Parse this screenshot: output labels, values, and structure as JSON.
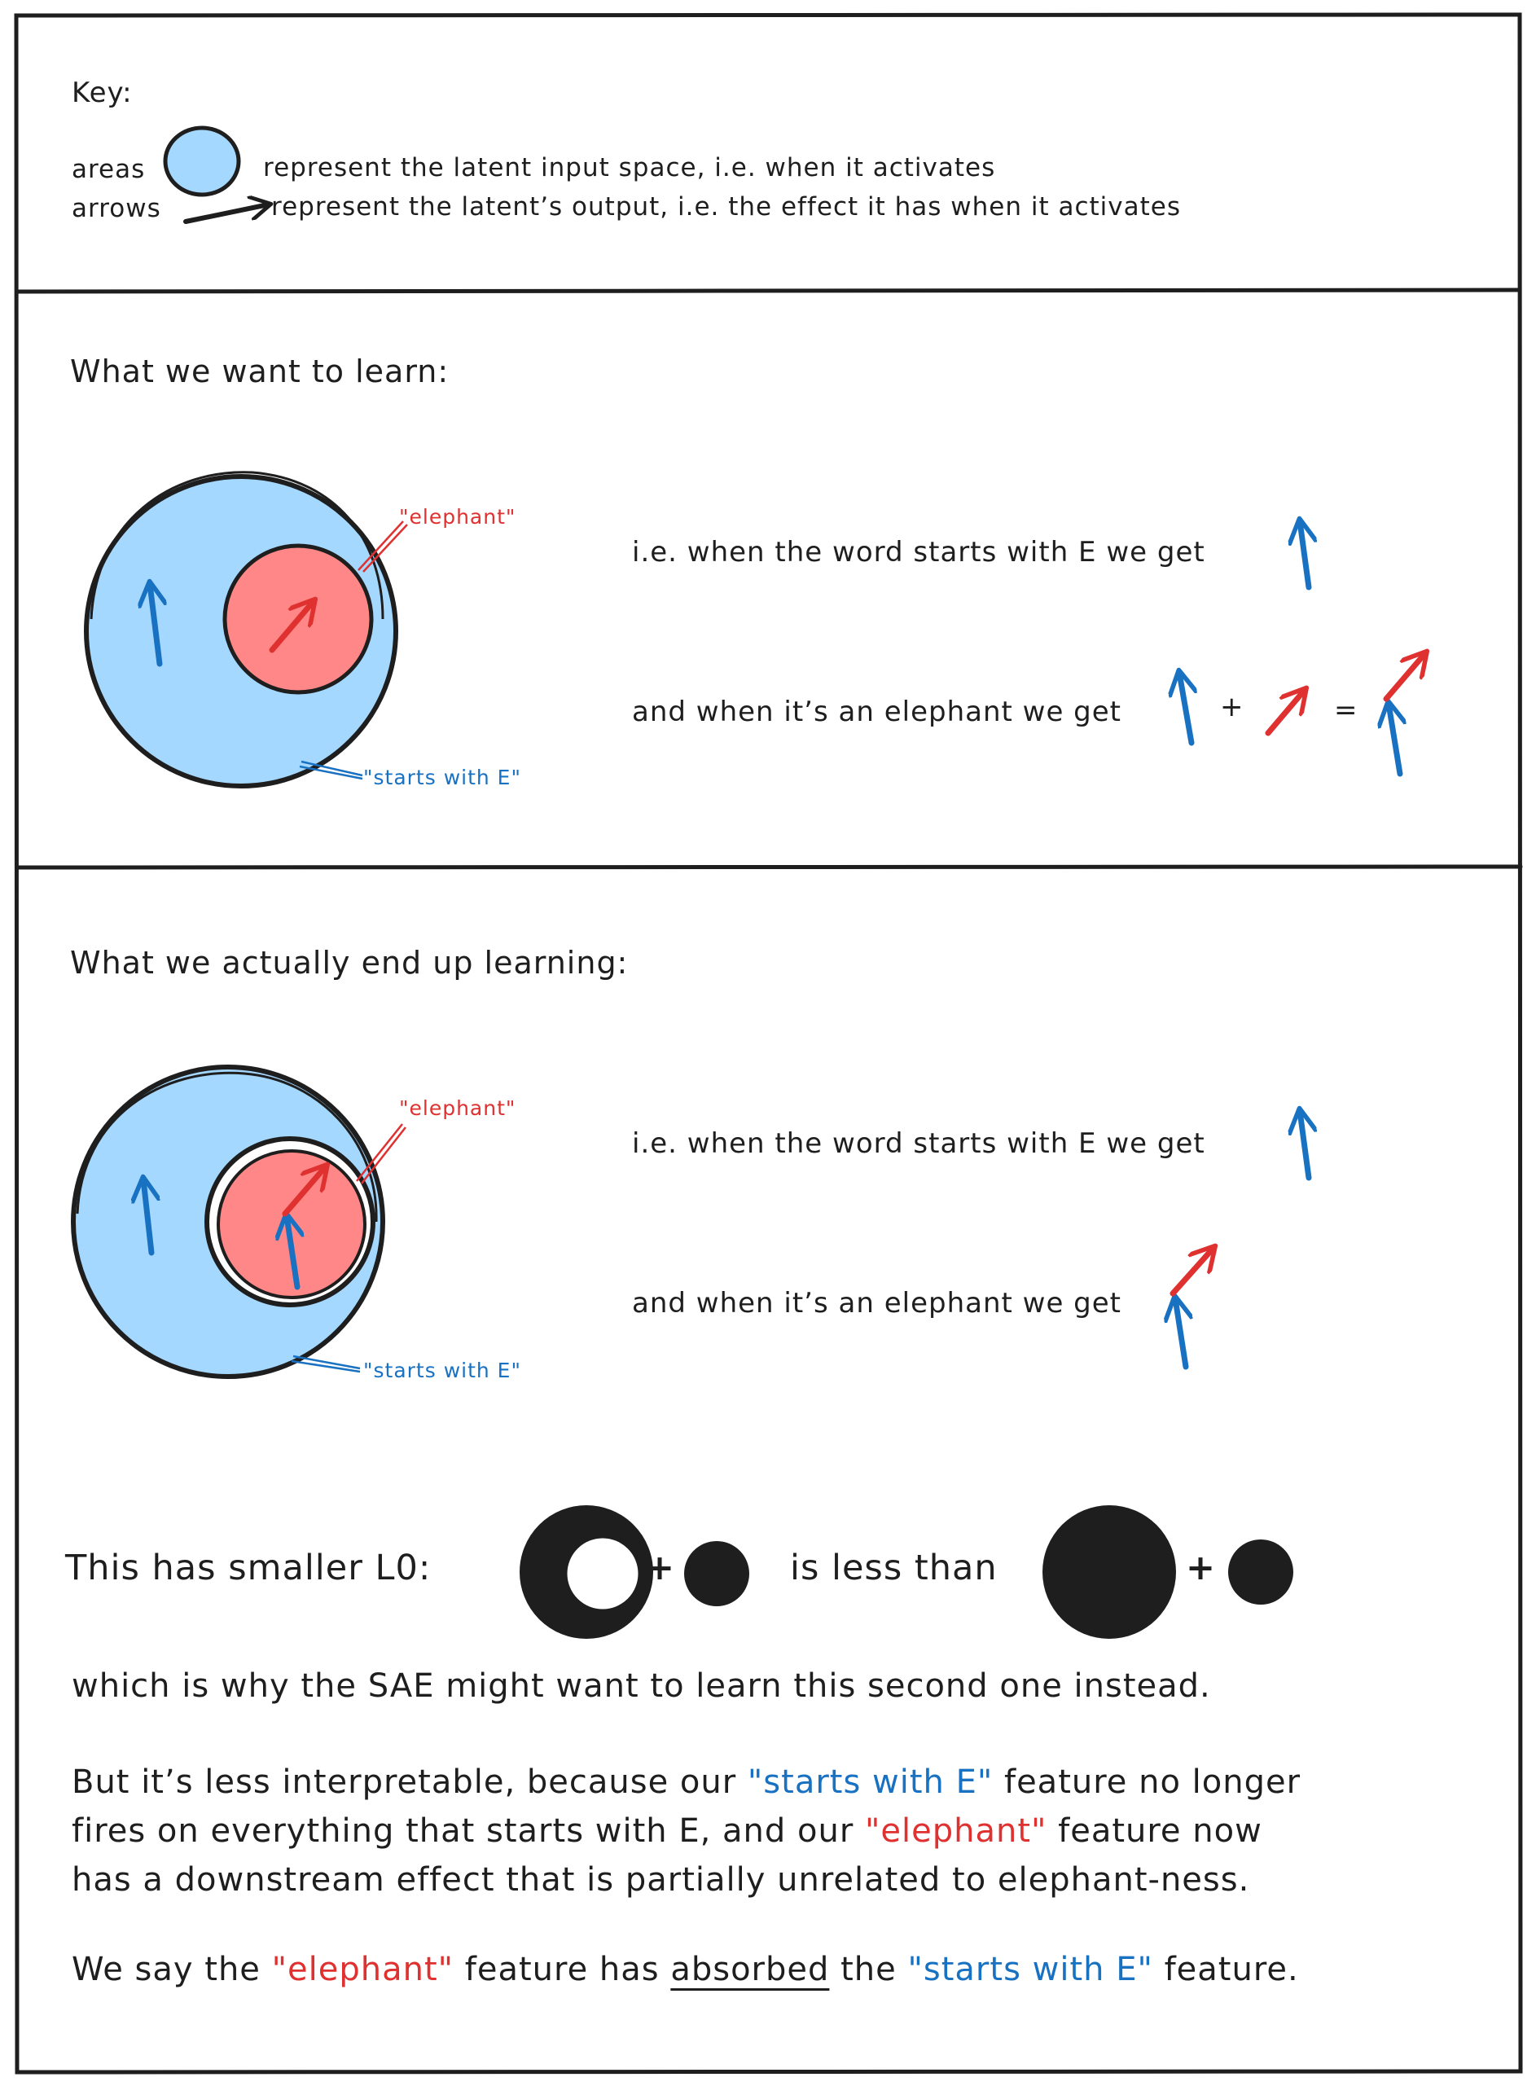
{
  "colors": {
    "ink": "#1e1e1e",
    "blue_fill": "#a5d8ff",
    "red_fill": "#ff8787",
    "blue_ink": "#1971c2",
    "red_ink": "#e03131"
  },
  "key": {
    "title": "Key:",
    "areas_label": "areas",
    "areas_text": "represent the latent input space, i.e. when it activates",
    "arrows_label": "arrows",
    "arrows_text": "represent the latent’s output, i.e. the effect it has when it activates"
  },
  "want": {
    "heading": "What we want to learn:",
    "elephant_label": "\"elephant\"",
    "starts_label": "\"starts with E\"",
    "line1": "i.e. when the word starts with E we get",
    "line2": "and when it’s an elephant we get",
    "plus": "+",
    "equals": "="
  },
  "actual": {
    "heading": "What we actually end up learning:",
    "elephant_label": "\"elephant\"",
    "starts_label": "\"starts with E\"",
    "line1": "i.e. when the word starts with E we get",
    "line2": "and when it’s an elephant we get"
  },
  "l0": {
    "intro": "This has smaller L0:",
    "plus1": "+",
    "compare": "is less than",
    "plus2": "+"
  },
  "conclusion": {
    "line1": "which is why the SAE might want to learn this second one instead.",
    "p2_a": "But it’s less interpretable, because our",
    "p2_starts": "\"starts with E\"",
    "p2_b": "feature no longer",
    "p2_c": "fires on everything that starts with E, and our",
    "p2_elephant": "\"elephant\"",
    "p2_d": "feature now",
    "p2_e": "has a downstream effect that is partially unrelated to elephant-ness.",
    "p3_a": "We say the",
    "p3_elephant": "\"elephant\"",
    "p3_b": "feature has",
    "p3_absorbed": "absorbed",
    "p3_c": "the",
    "p3_starts": "\"starts with E\"",
    "p3_d": "feature."
  }
}
